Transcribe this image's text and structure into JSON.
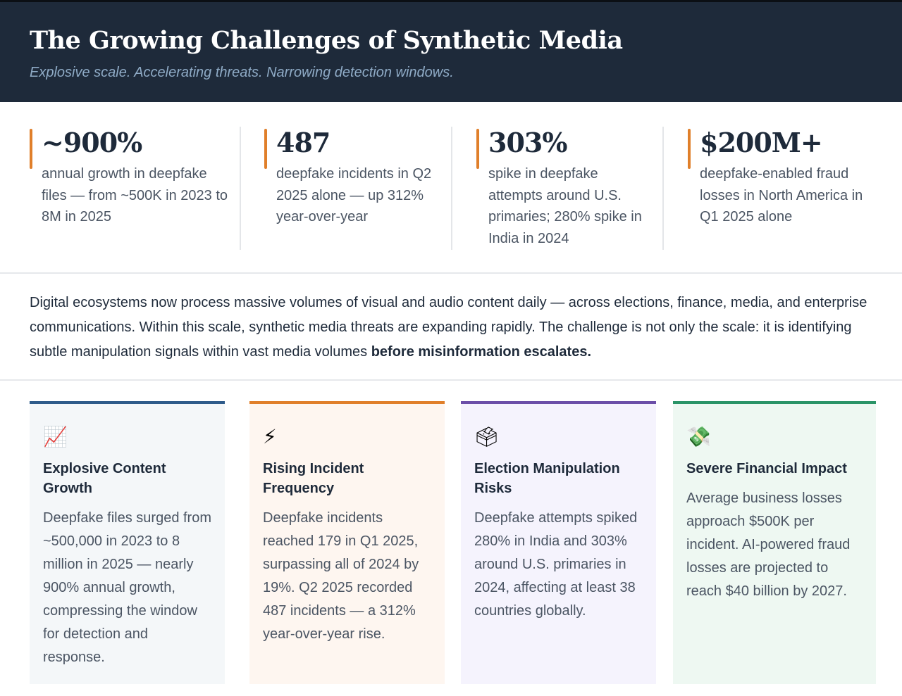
{
  "header": {
    "title": "The Growing Challenges of Synthetic Media",
    "subtitle": "Explosive scale. Accelerating threats. Narrowing detection windows."
  },
  "stats": [
    {
      "value": "~900%",
      "desc": "annual growth in deepfake files — from ~500K in 2023 to 8M in 2025"
    },
    {
      "value": "487",
      "desc": "deepfake incidents in Q2 2025 alone — up 312% year-over-year"
    },
    {
      "value": "303%",
      "desc": "spike in deepfake attempts around U.S. primaries; 280% spike in India in 2024"
    },
    {
      "value": "$200M+",
      "desc": "deepfake-enabled fraud losses in North America in Q1 2025 alone"
    }
  ],
  "intro": {
    "text": "Digital ecosystems now process massive volumes of visual and audio content daily — across elections, finance, media, and enterprise communications. Within this scale, synthetic media threats are expanding rapidly. The challenge is not only the scale: it is identifying subtle manipulation signals within vast media volumes ",
    "emphasis": "before misinformation escalates."
  },
  "cards": [
    {
      "icon": "chart-increasing-icon",
      "glyph": "📈",
      "title": "Explosive Content Growth",
      "body": "Deepfake files surged from ~500,000 in 2023 to 8 million in 2025 — nearly 900% annual growth, compressing the window for detection and response.",
      "accent": "#2e5b8a",
      "bg": "#f4f7f9"
    },
    {
      "icon": "lightning-icon",
      "glyph": "⚡",
      "title": "Rising Incident Frequency",
      "body": "Deepfake incidents reached 179 in Q1 2025, surpassing all of 2024 by 19%. Q2 2025 recorded 487 incidents — a 312% year-over-year rise.",
      "accent": "#e07f2a",
      "bg": "#fef6f0"
    },
    {
      "icon": "ballot-box-icon",
      "glyph": "🗳",
      "title": "Election Manipulation Risks",
      "body": "Deepfake attempts spiked 280% in India and 303% around U.S. primaries in 2024, affecting at least 38 countries globally.",
      "accent": "#6b4ea8",
      "bg": "#f5f3fd"
    },
    {
      "icon": "money-with-wings-icon",
      "glyph": "💸",
      "title": "Severe Financial Impact",
      "body": "Average business losses approach $500K per incident. AI-powered fraud losses are projected to reach $40 billion by 2027.",
      "accent": "#2a9467",
      "bg": "#eef8f2"
    }
  ]
}
